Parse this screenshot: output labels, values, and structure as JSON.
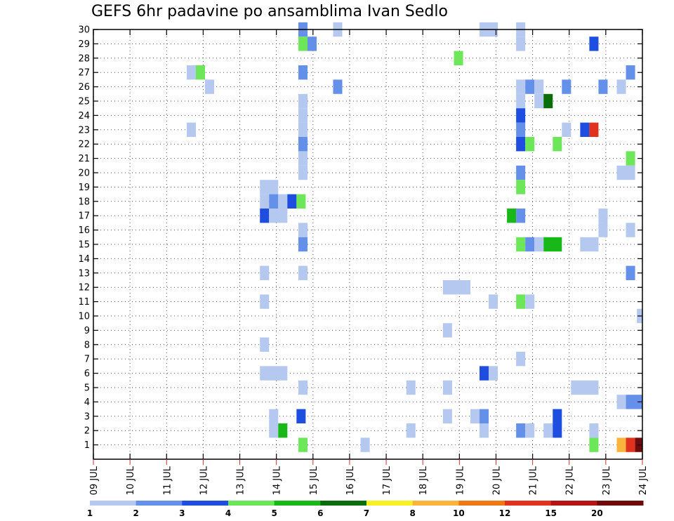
{
  "chart_data": {
    "type": "heatmap",
    "title": "GEFS 6hr padavine po ansamblima Ivan Sedlo",
    "x_tick_labels": [
      "09 JUL",
      "10 JUL",
      "11 JUL",
      "12 JUL",
      "13 JUL",
      "14 JUL",
      "15 JUL",
      "16 JUL",
      "17 JUL",
      "18 JUL",
      "19 JUL",
      "20 JUL",
      "21 JUL",
      "22 JUL",
      "23 JUL",
      "24 JUL"
    ],
    "y_tick_labels": [
      "1",
      "2",
      "3",
      "4",
      "5",
      "6",
      "7",
      "8",
      "9",
      "10",
      "11",
      "12",
      "13",
      "14",
      "15",
      "16",
      "17",
      "18",
      "19",
      "20",
      "21",
      "22",
      "23",
      "24",
      "25",
      "26",
      "27",
      "28",
      "29",
      "30"
    ],
    "xlim_days": [
      9,
      24
    ],
    "ylim": [
      0,
      30
    ],
    "grid": true,
    "colorbar": {
      "colors": [
        "#b4c8f0",
        "#6490ea",
        "#1e4ee0",
        "#6ee65a",
        "#18b818",
        "#0a6e0a",
        "#f8f020",
        "#fab43c",
        "#f07814",
        "#e0321e",
        "#b41414",
        "#6e0a0a"
      ],
      "labels": [
        "1",
        "2",
        "3",
        "4",
        "5",
        "6",
        "7",
        "8",
        "10",
        "12",
        "15",
        "20"
      ]
    },
    "cells": [
      {
        "day": 14.6,
        "w": 0.25,
        "member": 30,
        "level": 1
      },
      {
        "day": 15.55,
        "w": 0.25,
        "member": 30,
        "level": 0
      },
      {
        "day": 19.55,
        "w": 0.5,
        "member": 30,
        "level": 0
      },
      {
        "day": 20.55,
        "w": 0.25,
        "member": 30,
        "level": 0
      },
      {
        "day": 14.6,
        "w": 0.25,
        "member": 29,
        "level": 3
      },
      {
        "day": 14.85,
        "w": 0.25,
        "member": 29,
        "level": 1
      },
      {
        "day": 20.55,
        "w": 0.25,
        "member": 29,
        "level": 0
      },
      {
        "day": 22.55,
        "w": 0.25,
        "member": 29,
        "level": 2
      },
      {
        "day": 18.85,
        "w": 0.25,
        "member": 28,
        "level": 3
      },
      {
        "day": 11.55,
        "w": 0.25,
        "member": 27,
        "level": 0
      },
      {
        "day": 11.8,
        "w": 0.25,
        "member": 27,
        "level": 3
      },
      {
        "day": 14.6,
        "w": 0.25,
        "member": 27,
        "level": 1
      },
      {
        "day": 23.55,
        "w": 0.25,
        "member": 27,
        "level": 1
      },
      {
        "day": 12.05,
        "w": 0.25,
        "member": 26,
        "level": 0
      },
      {
        "day": 15.55,
        "w": 0.25,
        "member": 26,
        "level": 1
      },
      {
        "day": 20.55,
        "w": 0.25,
        "member": 26,
        "level": 0
      },
      {
        "day": 20.8,
        "w": 0.25,
        "member": 26,
        "level": 1
      },
      {
        "day": 21.05,
        "w": 0.25,
        "member": 26,
        "level": 0
      },
      {
        "day": 21.8,
        "w": 0.25,
        "member": 26,
        "level": 1
      },
      {
        "day": 22.8,
        "w": 0.25,
        "member": 26,
        "level": 1
      },
      {
        "day": 23.3,
        "w": 0.25,
        "member": 26,
        "level": 0
      },
      {
        "day": 14.6,
        "w": 0.25,
        "member": 25,
        "level": 0
      },
      {
        "day": 20.55,
        "w": 0.25,
        "member": 25,
        "level": 0
      },
      {
        "day": 21.05,
        "w": 0.25,
        "member": 25,
        "level": 0
      },
      {
        "day": 21.3,
        "w": 0.25,
        "member": 25,
        "level": 5
      },
      {
        "day": 14.6,
        "w": 0.25,
        "member": 24,
        "level": 0
      },
      {
        "day": 20.55,
        "w": 0.25,
        "member": 24,
        "level": 2
      },
      {
        "day": 11.55,
        "w": 0.25,
        "member": 23,
        "level": 0
      },
      {
        "day": 14.6,
        "w": 0.25,
        "member": 23,
        "level": 0
      },
      {
        "day": 20.55,
        "w": 0.25,
        "member": 23,
        "level": 1
      },
      {
        "day": 21.8,
        "w": 0.25,
        "member": 23,
        "level": 0
      },
      {
        "day": 22.3,
        "w": 0.25,
        "member": 23,
        "level": 2
      },
      {
        "day": 22.55,
        "w": 0.25,
        "member": 23,
        "level": 9
      },
      {
        "day": 14.6,
        "w": 0.25,
        "member": 22,
        "level": 1
      },
      {
        "day": 20.55,
        "w": 0.25,
        "member": 22,
        "level": 2
      },
      {
        "day": 20.8,
        "w": 0.25,
        "member": 22,
        "level": 3
      },
      {
        "day": 21.55,
        "w": 0.25,
        "member": 22,
        "level": 3
      },
      {
        "day": 14.6,
        "w": 0.25,
        "member": 21,
        "level": 0
      },
      {
        "day": 23.55,
        "w": 0.25,
        "member": 21,
        "level": 3
      },
      {
        "day": 14.6,
        "w": 0.25,
        "member": 20,
        "level": 0
      },
      {
        "day": 20.55,
        "w": 0.25,
        "member": 20,
        "level": 1
      },
      {
        "day": 23.3,
        "w": 0.5,
        "member": 20,
        "level": 0
      },
      {
        "day": 13.55,
        "w": 0.5,
        "member": 19,
        "level": 0
      },
      {
        "day": 20.55,
        "w": 0.25,
        "member": 19,
        "level": 3
      },
      {
        "day": 13.55,
        "w": 0.25,
        "member": 18,
        "level": 0
      },
      {
        "day": 13.8,
        "w": 0.25,
        "member": 18,
        "level": 1
      },
      {
        "day": 14.05,
        "w": 0.25,
        "member": 18,
        "level": 0
      },
      {
        "day": 14.3,
        "w": 0.25,
        "member": 18,
        "level": 2
      },
      {
        "day": 14.55,
        "w": 0.25,
        "member": 18,
        "level": 3
      },
      {
        "day": 13.55,
        "w": 0.25,
        "member": 17,
        "level": 2
      },
      {
        "day": 13.8,
        "w": 0.5,
        "member": 17,
        "level": 0
      },
      {
        "day": 20.3,
        "w": 0.25,
        "member": 17,
        "level": 4
      },
      {
        "day": 20.55,
        "w": 0.25,
        "member": 17,
        "level": 1
      },
      {
        "day": 22.8,
        "w": 0.25,
        "member": 17,
        "level": 0
      },
      {
        "day": 14.6,
        "w": 0.25,
        "member": 16,
        "level": 0
      },
      {
        "day": 22.8,
        "w": 0.25,
        "member": 16,
        "level": 0
      },
      {
        "day": 23.55,
        "w": 0.25,
        "member": 16,
        "level": 0
      },
      {
        "day": 14.6,
        "w": 0.25,
        "member": 15,
        "level": 1
      },
      {
        "day": 20.55,
        "w": 0.25,
        "member": 15,
        "level": 3
      },
      {
        "day": 20.8,
        "w": 0.25,
        "member": 15,
        "level": 1
      },
      {
        "day": 21.05,
        "w": 0.25,
        "member": 15,
        "level": 0
      },
      {
        "day": 21.3,
        "w": 0.5,
        "member": 15,
        "level": 4
      },
      {
        "day": 22.3,
        "w": 0.5,
        "member": 15,
        "level": 0
      },
      {
        "day": 13.55,
        "w": 0.25,
        "member": 13,
        "level": 0
      },
      {
        "day": 14.6,
        "w": 0.25,
        "member": 13,
        "level": 0
      },
      {
        "day": 23.55,
        "w": 0.25,
        "member": 13,
        "level": 1
      },
      {
        "day": 18.55,
        "w": 0.75,
        "member": 12,
        "level": 0
      },
      {
        "day": 13.55,
        "w": 0.25,
        "member": 11,
        "level": 0
      },
      {
        "day": 19.8,
        "w": 0.25,
        "member": 11,
        "level": 0
      },
      {
        "day": 20.55,
        "w": 0.25,
        "member": 11,
        "level": 3
      },
      {
        "day": 20.8,
        "w": 0.25,
        "member": 11,
        "level": 0
      },
      {
        "day": 23.85,
        "w": 0.15,
        "member": 10,
        "level": 0
      },
      {
        "day": 18.55,
        "w": 0.25,
        "member": 9,
        "level": 0
      },
      {
        "day": 13.55,
        "w": 0.25,
        "member": 8,
        "level": 0
      },
      {
        "day": 20.55,
        "w": 0.25,
        "member": 7,
        "level": 0
      },
      {
        "day": 13.55,
        "w": 0.75,
        "member": 6,
        "level": 0
      },
      {
        "day": 19.55,
        "w": 0.25,
        "member": 6,
        "level": 2
      },
      {
        "day": 19.8,
        "w": 0.25,
        "member": 6,
        "level": 0
      },
      {
        "day": 14.6,
        "w": 0.25,
        "member": 5,
        "level": 0
      },
      {
        "day": 17.55,
        "w": 0.25,
        "member": 5,
        "level": 0
      },
      {
        "day": 18.55,
        "w": 0.25,
        "member": 5,
        "level": 0
      },
      {
        "day": 22.05,
        "w": 0.75,
        "member": 5,
        "level": 0
      },
      {
        "day": 23.3,
        "w": 0.25,
        "member": 4,
        "level": 0
      },
      {
        "day": 23.55,
        "w": 0.45,
        "member": 4,
        "level": 1
      },
      {
        "day": 13.8,
        "w": 0.25,
        "member": 3,
        "level": 0
      },
      {
        "day": 14.55,
        "w": 0.25,
        "member": 3,
        "level": 2
      },
      {
        "day": 18.55,
        "w": 0.25,
        "member": 3,
        "level": 0
      },
      {
        "day": 19.3,
        "w": 0.25,
        "member": 3,
        "level": 0
      },
      {
        "day": 19.55,
        "w": 0.25,
        "member": 3,
        "level": 1
      },
      {
        "day": 21.55,
        "w": 0.25,
        "member": 3,
        "level": 2
      },
      {
        "day": 13.8,
        "w": 0.25,
        "member": 2,
        "level": 0
      },
      {
        "day": 14.05,
        "w": 0.25,
        "member": 2,
        "level": 4
      },
      {
        "day": 17.55,
        "w": 0.25,
        "member": 2,
        "level": 0
      },
      {
        "day": 19.55,
        "w": 0.25,
        "member": 2,
        "level": 0
      },
      {
        "day": 20.55,
        "w": 0.25,
        "member": 2,
        "level": 1
      },
      {
        "day": 20.8,
        "w": 0.25,
        "member": 2,
        "level": 0
      },
      {
        "day": 21.3,
        "w": 0.25,
        "member": 2,
        "level": 0
      },
      {
        "day": 21.55,
        "w": 0.25,
        "member": 2,
        "level": 2
      },
      {
        "day": 22.55,
        "w": 0.25,
        "member": 2,
        "level": 0
      },
      {
        "day": 14.6,
        "w": 0.25,
        "member": 1,
        "level": 3
      },
      {
        "day": 16.3,
        "w": 0.25,
        "member": 1,
        "level": 0
      },
      {
        "day": 22.55,
        "w": 0.25,
        "member": 1,
        "level": 3
      },
      {
        "day": 23.3,
        "w": 0.25,
        "member": 1,
        "level": 7
      },
      {
        "day": 23.55,
        "w": 0.25,
        "member": 1,
        "level": 9
      },
      {
        "day": 23.8,
        "w": 0.2,
        "member": 1,
        "level": 11
      }
    ]
  }
}
